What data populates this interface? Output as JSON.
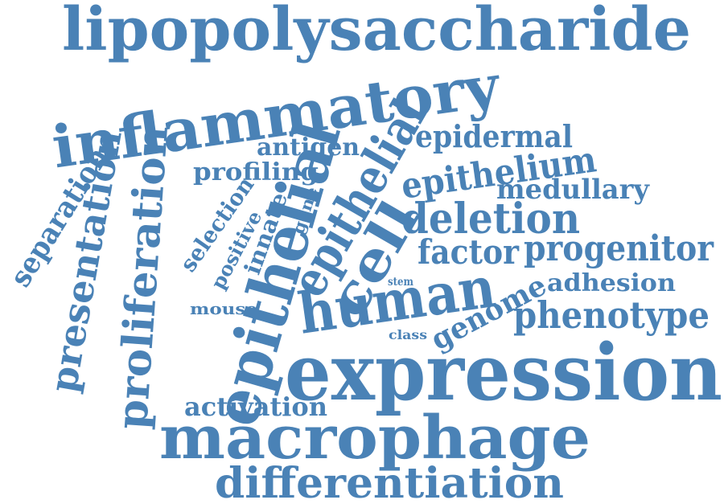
{
  "color": "#4a82b6",
  "words": {
    "lipopolysaccharide": "lipopolysaccharide",
    "inflammatory": "inflammatory",
    "epithelial_a": "epithelial",
    "epithelial_b": "epithelial",
    "epidermal": "epidermal",
    "antigen": "antigen",
    "profiling": "profiling",
    "epithelium": "epithelium",
    "medullary": "medullary",
    "deletion": "deletion",
    "factor": "factor",
    "progenitor": "progenitor",
    "gene": "gene",
    "innate": "innate",
    "positive": "positive",
    "selection": "selection",
    "cell": "cell",
    "stem": "stem",
    "adhesion": "adhesion",
    "human": "human",
    "mouse": "mouse",
    "genome": "genome",
    "phenotype": "phenotype",
    "class": "class",
    "separation": "separation",
    "presentation": "presentation",
    "proliferation": "proliferation",
    "expression": "expression",
    "activation": "activation",
    "macrophage": "macrophage",
    "differentiation": "differentiation"
  }
}
